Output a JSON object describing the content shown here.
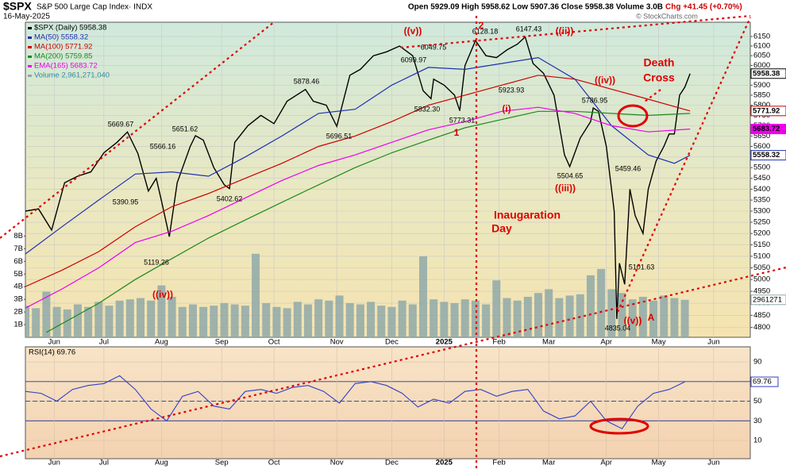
{
  "header": {
    "symbol": "$SPX",
    "name": "S&P 500 Large Cap Index· INDX",
    "date": "16-May-2025",
    "quote": "Open 5929.09 High 5958.62 Low 5907.36 Close 5958.38 Volume 3.0B",
    "change": "Chg +41.45 (+0.70%)",
    "credit": "© StockCharts.com"
  },
  "chart_data": [
    {
      "type": "line",
      "log_scale": true,
      "grid": true,
      "xlim": [
        0,
        277
      ],
      "xticks": [
        {
          "value": 11,
          "label": "Jun"
        },
        {
          "value": 30,
          "label": "Jul"
        },
        {
          "value": 52,
          "label": "Aug"
        },
        {
          "value": 75,
          "label": "Sep"
        },
        {
          "value": 95,
          "label": "Oct"
        },
        {
          "value": 119,
          "label": "Nov"
        },
        {
          "value": 140,
          "label": "Dec"
        },
        {
          "value": 160,
          "label": "2025"
        },
        {
          "value": 181,
          "label": "Feb"
        },
        {
          "value": 200,
          "label": "Mar"
        },
        {
          "value": 222,
          "label": "Apr"
        },
        {
          "value": 242,
          "label": "May"
        },
        {
          "value": 263,
          "label": "Jun"
        }
      ],
      "ylim": [
        4760,
        6225
      ],
      "yticks": [
        4800,
        4850,
        4900,
        4950,
        5000,
        5050,
        5100,
        5150,
        5200,
        5250,
        5300,
        5350,
        5400,
        5450,
        5500,
        5550,
        5600,
        5650,
        5700,
        5750,
        5800,
        5850,
        5900,
        5950,
        6000,
        6050,
        6100,
        6150
      ],
      "y2lim": [
        0,
        24.9
      ],
      "y2ticks": [
        {
          "value": 1,
          "label": "1B"
        },
        {
          "value": 2,
          "label": "2B"
        },
        {
          "value": 3,
          "label": "3B"
        },
        {
          "value": 4,
          "label": "4B"
        },
        {
          "value": 5,
          "label": "5B"
        },
        {
          "value": 6,
          "label": "6B"
        },
        {
          "value": 7,
          "label": "7B"
        },
        {
          "value": 8,
          "label": "8B"
        }
      ],
      "y2_tag": "2961271",
      "series": [
        {
          "name": "$SPX (Daily) 5958.38",
          "color": "#000000",
          "show_tag": true,
          "x": [
            0,
            5,
            10,
            15,
            20,
            25,
            30,
            35,
            39,
            43,
            47,
            50,
            52,
            55,
            58,
            63,
            65,
            68,
            72,
            76,
            78,
            80,
            85,
            90,
            95,
            100,
            107,
            110,
            115,
            119,
            124,
            128,
            133,
            138,
            143,
            148,
            152,
            155,
            156,
            160,
            164,
            166,
            168,
            172,
            176,
            180,
            184,
            188,
            191,
            194,
            198,
            202,
            206,
            208,
            212,
            216,
            217,
            219,
            222,
            225,
            226,
            227,
            229,
            231,
            233,
            236,
            238,
            241,
            244,
            246,
            248,
            250,
            252,
            254
          ],
          "values": [
            5300,
            5310,
            5215,
            5430,
            5460,
            5480,
            5570,
            5620,
            5669.67,
            5566.16,
            5390.95,
            5450,
            5346,
            5186,
            5430,
            5600,
            5651.62,
            5630,
            5500,
            5420,
            5402.62,
            5620,
            5700,
            5750,
            5710,
            5820,
            5878.46,
            5820,
            5800,
            5696.51,
            5950,
            5980,
            6050,
            6070,
            6099.97,
            6050,
            5872,
            5832.3,
            5930,
            5900,
            5850,
            5773.31,
            6000,
            6128.18,
            6050,
            6040,
            6080,
            6110,
            6147.43,
            6010,
            5960,
            5850,
            5560,
            5504.65,
            5640,
            5720,
            5786.95,
            5770,
            5600,
            5300,
            4835.04,
            5070,
            4980,
            5400,
            5280,
            5200,
            5400,
            5530,
            5600,
            5660,
            5660,
            5850,
            5890,
            5958.38
          ]
        },
        {
          "name": "MA(50) 5558.32",
          "color": "#2030b0",
          "show_tag": true,
          "x": [
            0,
            14,
            28,
            42,
            56,
            70,
            84,
            98,
            112,
            126,
            140,
            154,
            168,
            182,
            196,
            210,
            224,
            238,
            248,
            254
          ],
          "values": [
            5110,
            5230,
            5350,
            5470,
            5480,
            5460,
            5550,
            5650,
            5760,
            5780,
            5900,
            5990,
            5980,
            6010,
            6040,
            5930,
            5700,
            5560,
            5520,
            5558.32
          ]
        },
        {
          "name": "MA(100) 5771.92",
          "color": "#cc0000",
          "show_tag": true,
          "x": [
            0,
            14,
            28,
            42,
            56,
            70,
            84,
            98,
            112,
            126,
            140,
            154,
            168,
            182,
            196,
            210,
            224,
            238,
            254
          ],
          "values": [
            4970,
            5040,
            5120,
            5230,
            5320,
            5380,
            5450,
            5520,
            5600,
            5650,
            5720,
            5800,
            5850,
            5900,
            5950,
            5930,
            5880,
            5830,
            5771.92
          ]
        },
        {
          "name": "MA(200) 5759.85",
          "color": "#1e8a1e",
          "show_tag": false,
          "x": [
            8,
            28,
            42,
            56,
            70,
            84,
            98,
            112,
            126,
            140,
            154,
            168,
            182,
            196,
            210,
            224,
            238,
            254
          ],
          "values": [
            4780,
            4900,
            5000,
            5090,
            5180,
            5260,
            5340,
            5420,
            5500,
            5570,
            5630,
            5690,
            5730,
            5770,
            5770,
            5760,
            5750,
            5759.85
          ]
        },
        {
          "name": "EMA(165) 5683.72",
          "color": "#ee00ee",
          "show_tag": true,
          "x": [
            0,
            14,
            28,
            42,
            56,
            70,
            84,
            98,
            112,
            126,
            140,
            154,
            168,
            182,
            196,
            210,
            224,
            238,
            254
          ],
          "values": [
            4880,
            4960,
            5050,
            5160,
            5210,
            5280,
            5360,
            5440,
            5510,
            5560,
            5620,
            5680,
            5720,
            5770,
            5790,
            5760,
            5700,
            5670,
            5683.72
          ]
        },
        {
          "name": "Volume 2,961,271,040",
          "color": "#8fa9a9",
          "type": "bar",
          "axis": "y2",
          "x": [
            0,
            4,
            8,
            12,
            16,
            20,
            24,
            28,
            32,
            36,
            40,
            44,
            48,
            52,
            56,
            60,
            64,
            68,
            72,
            76,
            80,
            84,
            88,
            92,
            96,
            100,
            104,
            108,
            112,
            116,
            120,
            124,
            128,
            132,
            136,
            140,
            144,
            148,
            152,
            156,
            160,
            164,
            168,
            172,
            176,
            180,
            184,
            188,
            192,
            196,
            200,
            204,
            208,
            212,
            216,
            220,
            224,
            228,
            232,
            236,
            240,
            244,
            248,
            252
          ],
          "values": [
            2.5,
            2.3,
            3.6,
            2.4,
            2.2,
            2.6,
            2.4,
            2.8,
            2.5,
            2.9,
            3.0,
            3.1,
            2.9,
            4.1,
            3.2,
            2.4,
            2.6,
            2.4,
            2.5,
            2.7,
            2.6,
            2.5,
            6.6,
            2.7,
            2.4,
            2.3,
            2.8,
            2.6,
            3.0,
            2.9,
            3.3,
            2.7,
            2.6,
            2.8,
            2.5,
            2.4,
            2.9,
            2.6,
            6.4,
            3.0,
            2.8,
            2.7,
            3.0,
            2.9,
            2.6,
            4.5,
            3.1,
            2.9,
            3.2,
            3.5,
            3.8,
            3.1,
            3.3,
            3.4,
            4.9,
            5.4,
            3.8,
            3.5,
            3.0,
            3.2,
            2.9,
            3.3,
            3.1,
            2.96127104
          ]
        }
      ],
      "annotations": [
        "5669.67",
        "5566.16",
        "5390.95",
        "5119.26",
        "5651.62",
        "5402.62",
        "5878.46",
        "5696.51",
        "6099.97",
        "6049.75",
        "5832.30",
        "5773.31",
        "6128.18",
        "5923.93",
        "6147.43",
        "5786.95",
        "5504.65",
        "5459.46",
        "5101.63",
        "4835.04",
        "((v))",
        "((ii))",
        "((iv))",
        "(i)",
        "((iii))",
        "((iv))",
        "1",
        "2",
        "((v))",
        "A",
        "Death",
        "Cross",
        "Inaugaration",
        "Day"
      ]
    },
    {
      "type": "line",
      "title": "RSI(14) 69.76",
      "color": "#3040c8",
      "xlim": [
        0,
        277
      ],
      "xticks": [
        {
          "value": 11,
          "label": "Jun"
        },
        {
          "value": 30,
          "label": "Jul"
        },
        {
          "value": 52,
          "label": "Aug"
        },
        {
          "value": 75,
          "label": "Sep"
        },
        {
          "value": 95,
          "label": "Oct"
        },
        {
          "value": 119,
          "label": "Nov"
        },
        {
          "value": 140,
          "label": "Dec"
        },
        {
          "value": 160,
          "label": "2025"
        },
        {
          "value": 181,
          "label": "Feb"
        },
        {
          "value": 200,
          "label": "Mar"
        },
        {
          "value": 222,
          "label": "Apr"
        },
        {
          "value": 242,
          "label": "May"
        },
        {
          "value": 263,
          "label": "Jun"
        }
      ],
      "ylim": [
        -8.6,
        105.4
      ],
      "yticks": [
        10,
        30,
        50,
        70,
        90
      ],
      "reference_lines": [
        70,
        50,
        30
      ],
      "x": [
        0,
        6,
        12,
        18,
        24,
        30,
        36,
        42,
        48,
        54,
        60,
        66,
        72,
        78,
        84,
        90,
        96,
        102,
        108,
        114,
        120,
        126,
        132,
        138,
        144,
        150,
        156,
        162,
        168,
        174,
        180,
        186,
        192,
        198,
        204,
        210,
        216,
        222,
        228,
        234,
        240,
        246,
        252
      ],
      "values": [
        60,
        58,
        50,
        62,
        66,
        68,
        76,
        62,
        42,
        30,
        55,
        60,
        45,
        42,
        60,
        62,
        58,
        64,
        66,
        60,
        48,
        68,
        70,
        66,
        58,
        44,
        52,
        48,
        60,
        62,
        55,
        60,
        62,
        40,
        32,
        35,
        50,
        30,
        22,
        45,
        58,
        62,
        69.76
      ]
    }
  ]
}
